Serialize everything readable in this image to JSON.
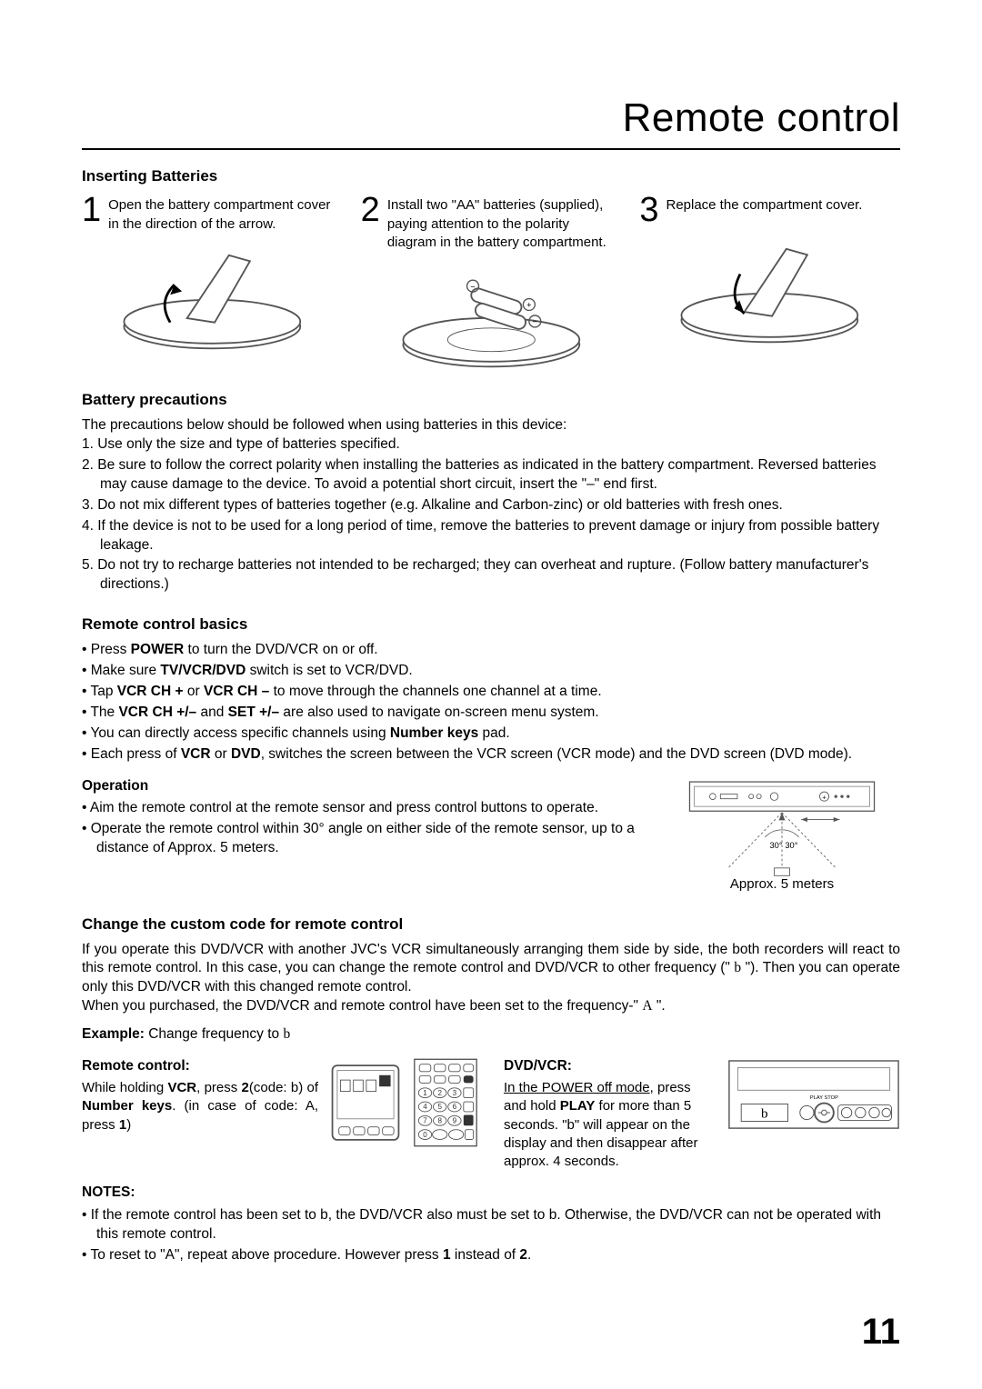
{
  "page": {
    "title": "Remote control",
    "number": "11"
  },
  "inserting_batteries": {
    "heading": "Inserting Batteries",
    "steps": [
      {
        "num": "1",
        "text": "Open the battery compartment cover in the direction of the arrow."
      },
      {
        "num": "2",
        "text": "Install two \"AA\" batteries (supplied), paying attention to the polarity diagram in the battery compartment."
      },
      {
        "num": "3",
        "text": "Replace the compartment cover."
      }
    ]
  },
  "battery_precautions": {
    "heading": "Battery precautions",
    "intro": "The precautions below should be followed when using batteries in this device:",
    "items": [
      "1. Use only the size and type of batteries specified.",
      "2. Be sure to follow the correct polarity when installing the batteries as indicated in the battery compartment. Reversed batteries may cause damage to the device.  To avoid a potential short circuit, insert the \"–\" end first.",
      "3. Do not mix different types of batteries together (e.g. Alkaline and Carbon-zinc) or old batteries with fresh ones.",
      "4. If the device is not to be used for a long period of time, remove the batteries to prevent damage or injury from possible battery leakage.",
      "5. Do not try to recharge batteries not intended to be recharged; they can overheat and rupture. (Follow battery manufacturer's directions.)"
    ]
  },
  "remote_basics": {
    "heading": "Remote control basics",
    "items_html": [
      "•  Press <b>POWER</b> to turn the DVD/VCR on or off.",
      "•  Make sure <b>TV/VCR/DVD</b> switch is set to VCR/DVD.",
      "•  Tap <b>VCR CH +</b> or <b>VCR CH –</b> to move through the channels one channel at a time.",
      "•  The <b>VCR CH +/–</b> and <b>SET +/–</b> are also used to navigate on-screen menu system.",
      "•  You can directly access specific channels using <b>Number keys</b> pad.",
      "•  Each press of <b>VCR</b> or <b>DVD</b>, switches the screen between the VCR screen (VCR mode) and the DVD screen (DVD mode)."
    ]
  },
  "operation": {
    "heading": "Operation",
    "items": [
      "• Aim the remote control at the remote sensor and press control buttons to operate.",
      "• Operate the remote control within 30° angle on either side of the remote sensor, up to a distance of Approx. 5 meters."
    ],
    "diagram": {
      "angle_left": "30°",
      "angle_right": "30°",
      "distance_label": "Approx. 5 meters"
    }
  },
  "custom_code": {
    "heading": "Change the custom code for remote control",
    "body_html": "If you operate this DVD/VCR with another JVC's VCR simultaneously arranging them side by side, the both recorders will react to this remote control. In this case, you can change the remote control and DVD/VCR to other frequency (\" <span class='freq-glyph'>b</span> \"). Then you can operate only this DVD/VCR with this changed remote control.<br>When you purchased, the DVD/VCR and remote control have been set to the frequency-\" <span class='freq-glyph'>A</span> \".",
    "example_html": "<b>Example:</b> Change frequency to <span class='freq-glyph'>b</span>",
    "remote": {
      "heading": "Remote control:",
      "text_html": "While holding <b>VCR</b>, press <b>2</b>(code: b) of <b>Number keys</b>. (in case of code: A, press <b>1</b>)"
    },
    "dvdvcr": {
      "heading": "DVD/VCR:",
      "text_html": "<span class='underline'>In the POWER off mode</span>, press and hold <b>PLAY</b> for more than 5 seconds. \"b\" will appear on the display and then disappear after approx. 4 seconds.",
      "display": "b"
    }
  },
  "notes": {
    "heading": "NOTES:",
    "items_html": [
      "• If the remote control has been set to b, the DVD/VCR also must be set to b. Otherwise, the DVD/VCR can not be operated with this remote control.",
      "• To reset to \"A\", repeat above procedure. However press <b>1</b> instead of <b>2</b>."
    ]
  },
  "colors": {
    "text": "#000000",
    "background": "#ffffff",
    "rule": "#000000",
    "diagram_stroke": "#444444"
  }
}
